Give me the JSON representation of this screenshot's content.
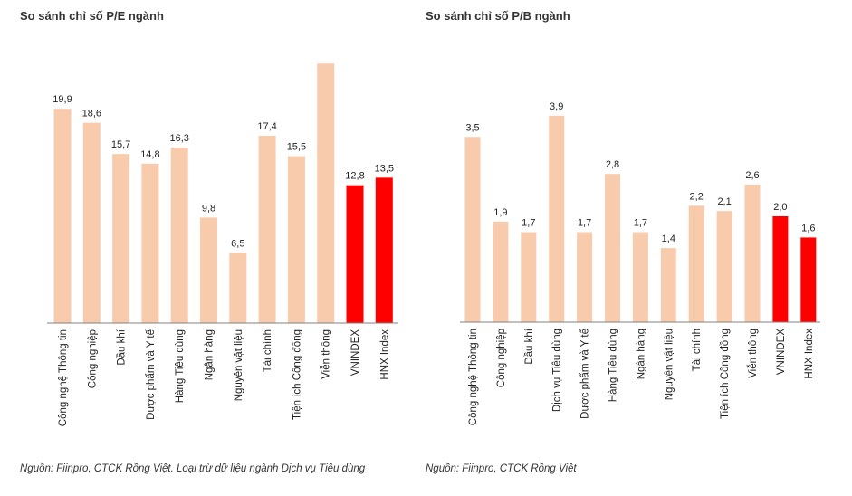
{
  "colors": {
    "sector": "#F8CBAD",
    "index": "#FF0000",
    "axis": "#808080"
  },
  "chart_data": [
    {
      "type": "bar",
      "title": "So sánh chỉ số P/E ngành",
      "source_note": "Nguồn: Fiinpro, CTCK Rồng Việt. Loại trừ dữ liệu ngành Dịch vụ Tiêu dùng",
      "xlabel": "",
      "ylabel": "",
      "grid": false,
      "categories": [
        "Công nghệ Thông tin",
        "Công nghiệp",
        "Dầu khí",
        "Dược phẩm và Y tế",
        "Hàng Tiêu dùng",
        "Ngân hàng",
        "Nguyên vật liệu",
        "Tài chính",
        "Tiện ích Công đồng",
        "Viễn thông",
        "VNINDEX",
        "HNX Index"
      ],
      "values": [
        19.9,
        18.6,
        15.7,
        14.8,
        16.3,
        9.8,
        6.5,
        17.4,
        15.5,
        24.1,
        12.8,
        13.5
      ],
      "labels": [
        "19,9",
        "18,6",
        "15,7",
        "14,8",
        "16,3",
        "9,8",
        "6,5",
        "17,4",
        "15,5",
        null,
        "12,8",
        "13,5"
      ],
      "highlight": [
        false,
        false,
        false,
        false,
        false,
        false,
        false,
        false,
        false,
        false,
        true,
        true
      ],
      "ylim": [
        0,
        25
      ]
    },
    {
      "type": "bar",
      "title": "So sánh chỉ số P/B ngành",
      "source_note": "Nguồn: Fiinpro, CTCK Rồng Việt",
      "xlabel": "",
      "ylabel": "",
      "grid": false,
      "categories": [
        "Công nghệ Thông tin",
        "Công nghiệp",
        "Dầu khí",
        "Dịch vụ Tiêu dùng",
        "Dược phẩm và Y tế",
        "Hàng Tiêu dùng",
        "Ngân hàng",
        "Nguyên vật liệu",
        "Tài chính",
        "Tiện ích Công đồng",
        "Viễn thông",
        "VNINDEX",
        "HNX Index"
      ],
      "values": [
        3.5,
        1.9,
        1.7,
        3.9,
        1.7,
        2.8,
        1.7,
        1.4,
        2.2,
        2.1,
        2.6,
        2.0,
        1.6
      ],
      "labels": [
        "3,5",
        "1,9",
        "1,7",
        "3,9",
        "1,7",
        "2,8",
        "1,7",
        "1,4",
        "2,2",
        "2,1",
        "2,6",
        "2,0",
        "1,6"
      ],
      "highlight": [
        false,
        false,
        false,
        false,
        false,
        false,
        false,
        false,
        false,
        false,
        false,
        true,
        true
      ],
      "ylim": [
        0,
        4.2
      ]
    }
  ]
}
